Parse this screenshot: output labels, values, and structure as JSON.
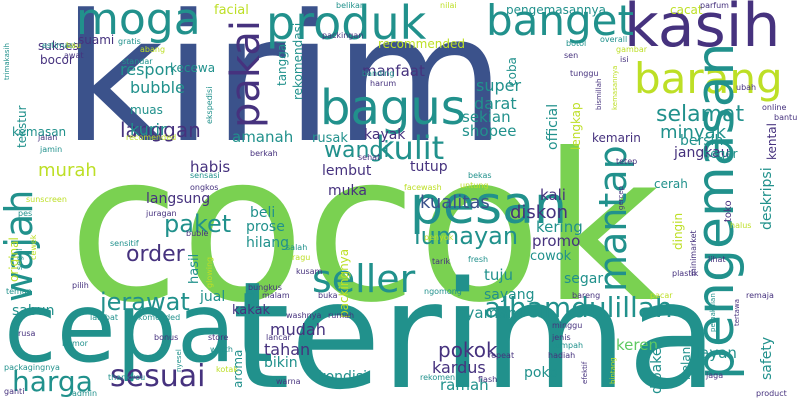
{
  "background": "#ffffff",
  "palette": {
    "dark_blue": "#3b528b",
    "purple": "#46327e",
    "teal": "#21918c",
    "green": "#5ec962",
    "light_green": "#7ad151",
    "yellow": "#bddf26"
  },
  "words": [
    {
      "text": "cocok",
      "color": "#7ad151"
    },
    {
      "text": "kirim",
      "color": "#3b528b"
    },
    {
      "text": "terima",
      "color": "#21918c"
    },
    {
      "text": "cepat",
      "color": "#21918c"
    },
    {
      "text": "kasih",
      "color": "#46327e"
    },
    {
      "text": "produk",
      "color": "#21918c"
    },
    {
      "text": "banget",
      "color": "#21918c"
    },
    {
      "text": "moga",
      "color": "#21918c"
    },
    {
      "text": "barang",
      "color": "#bddf26"
    },
    {
      "text": "pengemasan",
      "color": "#21918c"
    },
    {
      "text": "bagus",
      "color": "#21918c"
    },
    {
      "text": "pakai",
      "color": "#46327e"
    },
    {
      "text": "wajah",
      "color": "#21918c"
    },
    {
      "text": "mantap",
      "color": "#21918c"
    },
    {
      "text": "pesan",
      "color": "#21918c"
    },
    {
      "text": "kulit",
      "color": "#21918c"
    },
    {
      "text": "seller",
      "color": "#21918c"
    },
    {
      "text": "alhamdulillah",
      "color": "#21918c"
    },
    {
      "text": "sesuai",
      "color": "#46327e"
    },
    {
      "text": "harga",
      "color": "#21918c"
    },
    {
      "text": "jerawat",
      "color": "#21918c"
    },
    {
      "text": "selamat",
      "color": "#21918c"
    },
    {
      "text": "minyak",
      "color": "#21918c"
    },
    {
      "text": "langgan",
      "color": "#46327e"
    },
    {
      "text": "wangi",
      "color": "#21918c"
    },
    {
      "text": "lumayan",
      "color": "#21918c"
    },
    {
      "text": "paket",
      "color": "#21918c"
    },
    {
      "text": "order",
      "color": "#46327e"
    },
    {
      "text": "pokok",
      "color": "#46327e"
    },
    {
      "text": "tahan",
      "color": "#46327e"
    },
    {
      "text": "kualitas",
      "color": "#3b528b"
    },
    {
      "text": "diskon",
      "color": "#46327e"
    },
    {
      "text": "murah",
      "color": "#bddf26"
    },
    {
      "text": "respon",
      "color": "#21918c"
    },
    {
      "text": "bubble",
      "color": "#21918c"
    },
    {
      "text": "kurir",
      "color": "#21918c"
    },
    {
      "text": "manfaat",
      "color": "#46327e"
    },
    {
      "text": "super",
      "color": "#21918c"
    },
    {
      "text": "darat",
      "color": "#21918c"
    },
    {
      "text": "sekian",
      "color": "#21918c"
    },
    {
      "text": "shopee",
      "color": "#21918c"
    },
    {
      "text": "amanah",
      "color": "#21918c"
    },
    {
      "text": "rusak",
      "color": "#21918c"
    },
    {
      "text": "kayak",
      "color": "#46327e"
    },
    {
      "text": "tutup",
      "color": "#46327e"
    },
    {
      "text": "kali",
      "color": "#46327e"
    },
    {
      "text": "kering",
      "color": "#21918c"
    },
    {
      "text": "promo",
      "color": "#46327e"
    },
    {
      "text": "cowok",
      "color": "#21918c"
    },
    {
      "text": "tuju",
      "color": "#21918c"
    },
    {
      "text": "sayang",
      "color": "#21918c"
    },
    {
      "text": "segar",
      "color": "#21918c"
    },
    {
      "text": "nyaman",
      "color": "#21918c"
    },
    {
      "text": "keren",
      "color": "#5ec962"
    },
    {
      "text": "layan",
      "color": "#21918c"
    },
    {
      "text": "poko",
      "color": "#21918c"
    },
    {
      "text": "kardus",
      "color": "#46327e"
    },
    {
      "text": "ramah",
      "color": "#21918c"
    },
    {
      "text": "kondisi",
      "color": "#21918c"
    },
    {
      "text": "bikin",
      "color": "#21918c"
    },
    {
      "text": "mudah",
      "color": "#46327e"
    },
    {
      "text": "jual",
      "color": "#21918c"
    },
    {
      "text": "kakak",
      "color": "#46327e"
    },
    {
      "text": "sabun",
      "color": "#21918c"
    },
    {
      "text": "langsung",
      "color": "#46327e"
    },
    {
      "text": "habis",
      "color": "#46327e"
    },
    {
      "text": "lembut",
      "color": "#46327e"
    },
    {
      "text": "muka",
      "color": "#46327e"
    },
    {
      "text": "beli",
      "color": "#21918c"
    },
    {
      "text": "prose",
      "color": "#21918c"
    },
    {
      "text": "hilang",
      "color": "#21918c"
    },
    {
      "text": "jangkau",
      "color": "#46327e"
    },
    {
      "text": "bersih",
      "color": "#21918c"
    },
    {
      "text": "seger",
      "color": "#21918c"
    },
    {
      "text": "cerah",
      "color": "#21918c"
    },
    {
      "text": "kemarin",
      "color": "#46327e"
    },
    {
      "text": "facial",
      "color": "#bddf26"
    },
    {
      "text": "sukses",
      "color": "#46327e"
    },
    {
      "text": "bocor",
      "color": "#46327e"
    },
    {
      "text": "suami",
      "color": "#46327e"
    },
    {
      "text": "kecewa",
      "color": "#21918c"
    },
    {
      "text": "recommended",
      "color": "#bddf26"
    },
    {
      "text": "muas",
      "color": "#21918c"
    },
    {
      "text": "tanggal",
      "color": "#21918c"
    },
    {
      "text": "rekomendasi",
      "color": "#21918c"
    },
    {
      "text": "pengemasannya",
      "color": "#21918c"
    },
    {
      "text": "coba",
      "color": "#21918c"
    },
    {
      "text": "cacat",
      "color": "#bddf26"
    },
    {
      "text": "tekstur",
      "color": "#21918c"
    },
    {
      "text": "kemasan",
      "color": "#21918c"
    },
    {
      "text": "original",
      "color": "#bddf26"
    },
    {
      "text": "official",
      "color": "#21918c"
    },
    {
      "text": "lengkap",
      "color": "#bddf26"
    },
    {
      "text": "kental",
      "color": "#46327e"
    },
    {
      "text": "deskripsi",
      "color": "#21918c"
    },
    {
      "text": "safety",
      "color": "#21918c"
    },
    {
      "text": "belanja",
      "color": "#21918c"
    },
    {
      "text": "dipake",
      "color": "#21918c"
    },
    {
      "text": "dingin",
      "color": "#bddf26"
    },
    {
      "text": "aroma",
      "color": "#21918c"
    },
    {
      "text": "hasil",
      "color": "#21918c"
    },
    {
      "text": "packingnya",
      "color": "#bddf26"
    },
    {
      "text": "toko",
      "color": "#46327e"
    },
    {
      "text": "tebel",
      "color": "#21918c"
    }
  ],
  "small_words": [
    "belikan",
    "nilai",
    "parfum",
    "estimasi",
    "gratis",
    "abang",
    "botol",
    "overall",
    "bau",
    "awat",
    "standar",
    "packingan",
    "sen",
    "gambar",
    "isi",
    "trimakasih",
    "lihat",
    "banding",
    "harum",
    "tunggu",
    "ubah",
    "bismillah",
    "online",
    "bantu",
    "jalan",
    "jamin",
    "recomended",
    "ekspedisi",
    "berkah",
    "sehat",
    "tetep",
    "sunscreen",
    "sensasi",
    "ongkos",
    "facewash",
    "bekas",
    "untung",
    "pes",
    "salah",
    "ragu",
    "kusam",
    "bungkus",
    "penyok",
    "tarik",
    "fresh",
    "halus",
    "minimarket",
    "buble",
    "sensitif",
    "juragan",
    "glowing",
    "segel",
    "cewek",
    "pilih",
    "malam",
    "buka",
    "ngomong",
    "bareng",
    "pacar",
    "remaja",
    "plastik",
    "teman",
    "rekomended",
    "washnya",
    "rumah",
    "minggu",
    "jenis",
    "tertawa",
    "lambat",
    "bonus",
    "store",
    "lancar",
    "repeat",
    "hadiah",
    "jaga",
    "rusa",
    "nomor",
    "worth",
    "kotak",
    "hijau",
    "tumpah",
    "efektif",
    "bintang",
    "packagingnya",
    "thankyou",
    "warna",
    "flash",
    "rekomen",
    "ganti",
    "admin",
    "nyesel",
    "product",
    "pemakaian",
    "kemasannya",
    "gercep"
  ]
}
